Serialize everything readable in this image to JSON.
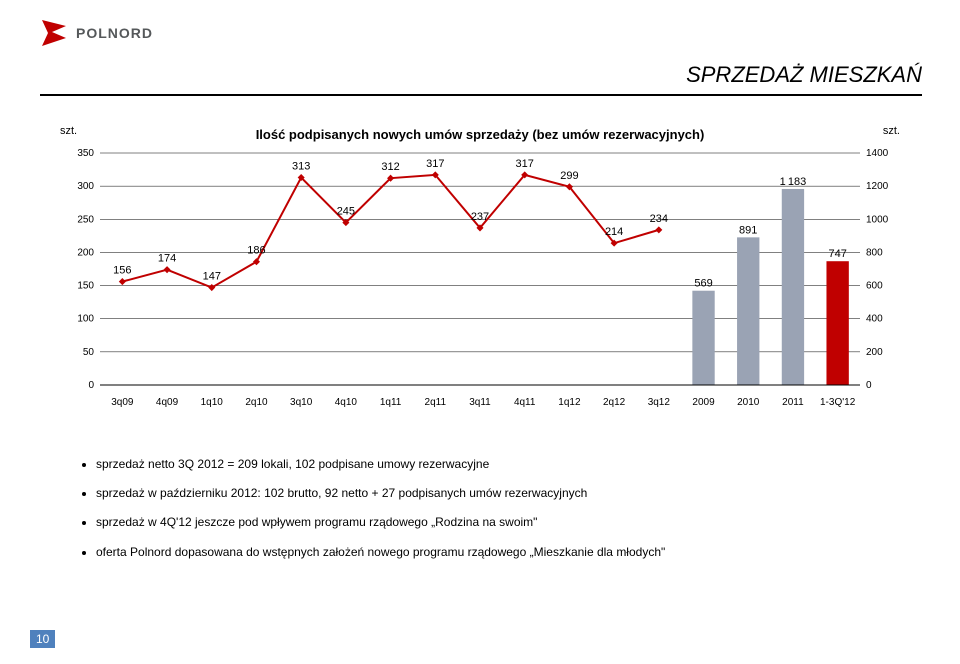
{
  "logo": {
    "text": "POLNORD",
    "mark_color": "#c00000",
    "text_color": "#55585a"
  },
  "title": "SPRZEDAŻ MIESZKAŃ",
  "chart": {
    "heading": "Ilość podpisanych nowych umów sprzedaży (bez umów rezerwacyjnych)",
    "left_axis": {
      "unit": "szt.",
      "ticks": [
        0,
        50,
        100,
        150,
        200,
        250,
        300,
        350
      ],
      "min": 0,
      "max": 350
    },
    "right_axis": {
      "unit": "szt.",
      "ticks": [
        0,
        200,
        400,
        600,
        800,
        1000,
        1200,
        1400
      ],
      "min": 0,
      "max": 1400
    },
    "categories": [
      "3q09",
      "4q09",
      "1q10",
      "2q10",
      "3q10",
      "4q10",
      "1q11",
      "2q11",
      "3q11",
      "4q11",
      "1q12",
      "2q12",
      "3q12",
      "2009",
      "2010",
      "2011",
      "1-3Q'12"
    ],
    "line_series": {
      "values": [
        156,
        174,
        147,
        186,
        313,
        245,
        312,
        317,
        237,
        317,
        299,
        214,
        234,
        null,
        null,
        null,
        null
      ],
      "color": "#c00000",
      "marker_color": "#c00000",
      "marker_size": 5,
      "line_width": 2
    },
    "bar_series": {
      "values": [
        null,
        null,
        null,
        null,
        null,
        null,
        null,
        null,
        null,
        null,
        null,
        null,
        null,
        569,
        891,
        1183,
        747
      ],
      "colors": [
        "#9aa3b4",
        "#9aa3b4",
        "#9aa3b4",
        "#c00000"
      ],
      "bar_width": 0.5
    },
    "grid_color": "#000000",
    "background_color": "#ffffff",
    "label_fontsize": 11,
    "tick_fontsize": 10
  },
  "notes": [
    "sprzedaż netto 3Q 2012 = 209 lokali, 102 podpisane umowy rezerwacyjne",
    "sprzedaż w październiku 2012: 102 brutto, 92 netto + 27 podpisanych umów rezerwacyjnych",
    "sprzedaż w 4Q'12 jeszcze pod wpływem programu rządowego „Rodzina na swoim\"",
    "oferta Polnord dopasowana do wstępnych założeń nowego programu rządowego „Mieszkanie dla młodych\""
  ],
  "page_number": "10"
}
